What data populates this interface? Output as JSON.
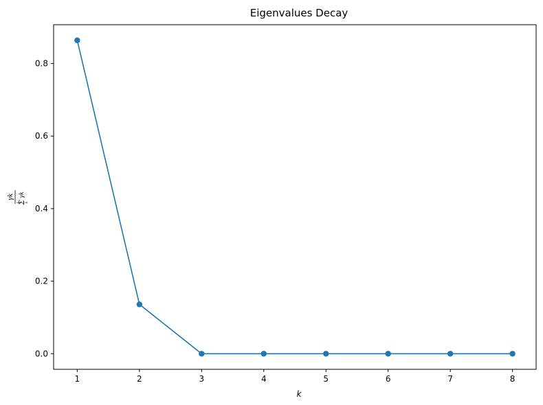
{
  "chart_data": {
    "type": "line",
    "title": "Eigenvalues Decay",
    "xlabel": "k",
    "ylabel": {
      "numerator": "γk",
      "sigma": "Σ",
      "upper": "k",
      "lower": "k",
      "term": "γk"
    },
    "xlim": [
      0.62,
      8.38
    ],
    "ylim": [
      -0.043,
      0.907
    ],
    "x_ticks": [
      1,
      2,
      3,
      4,
      5,
      6,
      7,
      8
    ],
    "x_tick_labels": [
      "1",
      "2",
      "3",
      "4",
      "5",
      "6",
      "7",
      "8"
    ],
    "y_ticks": [
      0.0,
      0.2,
      0.4,
      0.6,
      0.8
    ],
    "y_tick_labels": [
      "0.0",
      "0.2",
      "0.4",
      "0.6",
      "0.8"
    ],
    "grid": false,
    "legend": "none",
    "series": [
      {
        "x": [
          1,
          2,
          3,
          4,
          5,
          6,
          7,
          8
        ],
        "values": [
          0.864,
          0.136,
          0.0,
          0.0,
          0.0,
          0.0,
          0.0,
          0.0
        ],
        "color": "#1f77b4",
        "marker": "circle"
      }
    ]
  }
}
